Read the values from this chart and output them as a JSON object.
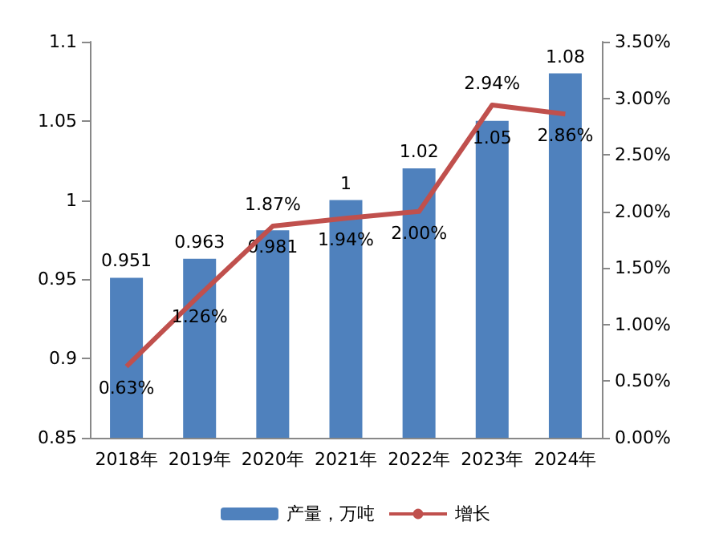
{
  "chart_data": {
    "type": "bar",
    "categories": [
      "2018年",
      "2019年",
      "2020年",
      "2021年",
      "2022年",
      "2023年",
      "2024年"
    ],
    "series": [
      {
        "name": "产量，万吨",
        "color": "#4f81bd",
        "values": [
          0.951,
          0.963,
          0.981,
          1,
          1.02,
          1.05,
          1.08
        ],
        "value_labels": [
          "0.951",
          "0.963",
          "0.981",
          "1",
          "1.02",
          "1.05",
          "1.08"
        ]
      },
      {
        "name": "增长",
        "type": "line",
        "axis": "y2",
        "color": "#c0504d",
        "values": [
          0.63,
          1.26,
          1.87,
          1.94,
          2.0,
          2.94,
          2.86
        ],
        "value_labels": [
          "0.63%",
          "1.26%",
          "1.87%",
          "1.94%",
          "2.00%",
          "2.94%",
          "2.86%"
        ]
      }
    ],
    "ylim": [
      0.85,
      1.1
    ],
    "yticks": [
      0.85,
      0.9,
      0.95,
      1,
      1.05,
      1.1
    ],
    "y2lim": [
      0,
      3.5
    ],
    "y2ticks": [
      {
        "value": 0,
        "label": "0.00%"
      },
      {
        "value": 0.5,
        "label": "0.50%"
      },
      {
        "value": 1,
        "label": "1.00%"
      },
      {
        "value": 1.5,
        "label": "1.50%"
      },
      {
        "value": 2,
        "label": "2.00%"
      },
      {
        "value": 2.5,
        "label": "2.50%"
      },
      {
        "value": 3,
        "label": "3.00%"
      },
      {
        "value": 3.5,
        "label": "3.50%"
      }
    ],
    "grid": false,
    "legend": "bottom",
    "marker": "none",
    "line_style": "solid"
  }
}
